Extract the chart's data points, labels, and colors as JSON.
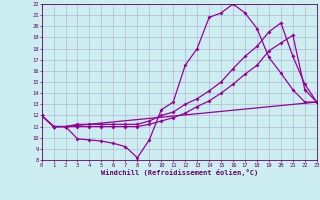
{
  "xlabel": "Windchill (Refroidissement éolien,°C)",
  "bg_color": "#cceef0",
  "grid_color": "#aaaacc",
  "line_color": "#990099",
  "xlim": [
    0,
    23
  ],
  "ylim": [
    8,
    22
  ],
  "xticks": [
    0,
    1,
    2,
    3,
    4,
    5,
    6,
    7,
    8,
    9,
    10,
    11,
    12,
    13,
    14,
    15,
    16,
    17,
    18,
    19,
    20,
    21,
    22,
    23
  ],
  "yticks": [
    8,
    9,
    10,
    11,
    12,
    13,
    14,
    15,
    16,
    17,
    18,
    19,
    20,
    21,
    22
  ],
  "curve1_x": [
    0,
    1,
    2,
    3,
    4,
    5,
    6,
    7,
    8,
    9,
    10,
    11,
    12,
    13,
    14,
    15,
    16,
    17,
    18,
    19,
    20,
    21,
    22,
    23
  ],
  "curve1_y": [
    12.0,
    11.0,
    11.0,
    9.9,
    9.8,
    9.7,
    9.5,
    9.2,
    8.2,
    9.8,
    12.5,
    13.2,
    16.5,
    18.0,
    20.8,
    21.2,
    22.0,
    21.2,
    19.8,
    17.2,
    15.8,
    14.3,
    13.2,
    13.2
  ],
  "curve2_x": [
    0,
    1,
    2,
    3,
    4,
    5,
    6,
    7,
    8,
    9,
    10,
    11,
    12,
    13,
    14,
    15,
    16,
    17,
    18,
    19,
    20,
    21,
    22,
    23
  ],
  "curve2_y": [
    12.0,
    11.0,
    11.0,
    11.2,
    11.2,
    11.2,
    11.2,
    11.2,
    11.2,
    11.5,
    12.0,
    12.3,
    13.0,
    13.5,
    14.2,
    15.0,
    16.2,
    17.3,
    18.2,
    19.5,
    20.3,
    17.3,
    14.8,
    13.2
  ],
  "curve3_x": [
    0,
    1,
    2,
    3,
    4,
    5,
    6,
    7,
    8,
    9,
    10,
    11,
    12,
    13,
    14,
    15,
    16,
    17,
    18,
    19,
    20,
    21,
    22,
    23
  ],
  "curve3_y": [
    12.0,
    11.0,
    11.0,
    11.0,
    11.0,
    11.0,
    11.0,
    11.0,
    11.0,
    11.2,
    11.5,
    11.8,
    12.2,
    12.8,
    13.3,
    14.0,
    14.8,
    15.7,
    16.5,
    17.8,
    18.5,
    19.2,
    14.3,
    13.2
  ],
  "curve4_x": [
    0,
    1,
    2,
    23
  ],
  "curve4_y": [
    12.0,
    11.0,
    11.0,
    13.2
  ]
}
